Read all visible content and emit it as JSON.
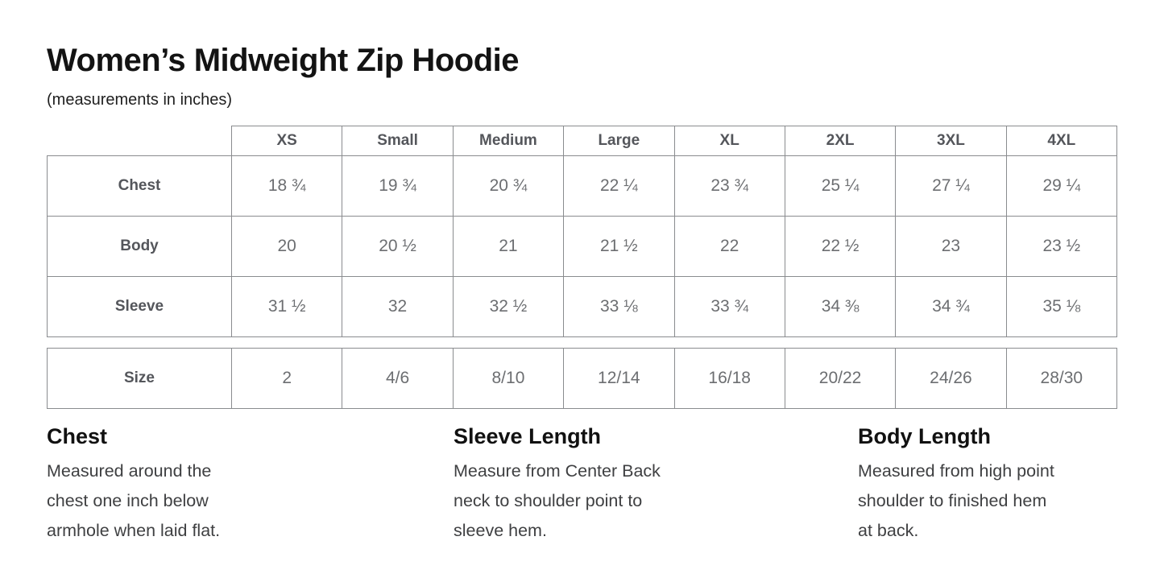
{
  "page": {
    "title": "Women’s Midweight Zip Hoodie",
    "subtitle": "(measurements in inches)"
  },
  "colors": {
    "table_border": "#8a8c8f",
    "header_text": "#54565b",
    "cell_text": "#6c6e71",
    "title_text": "#131313",
    "definition_text": "#3f4042"
  },
  "size_chart": {
    "columns": [
      "XS",
      "Small",
      "Medium",
      "Large",
      "XL",
      "2XL",
      "3XL",
      "4XL"
    ],
    "rows": [
      {
        "label": "Chest",
        "values": [
          "18 ¾",
          "19 ¾",
          "20 ¾",
          "22 ¼",
          "23 ¾",
          "25 ¼",
          "27 ¼",
          "29 ¼"
        ]
      },
      {
        "label": "Body",
        "values": [
          "20",
          "20 ½",
          "21",
          "21 ½",
          "22",
          "22 ½",
          "23",
          "23 ½"
        ]
      },
      {
        "label": "Sleeve",
        "values": [
          "31 ½",
          "32",
          "32 ½",
          "33 ⅛",
          "33 ¾",
          "34 ⅜",
          "34 ¾",
          "35 ⅛"
        ]
      }
    ],
    "size_row": {
      "label": "Size",
      "values": [
        "2",
        "4/6",
        "8/10",
        "12/14",
        "16/18",
        "20/22",
        "24/26",
        "28/30"
      ]
    }
  },
  "definitions": [
    {
      "heading": "Chest",
      "description": "Measured around the\nchest one inch below\narmhole when laid flat."
    },
    {
      "heading": "Sleeve Length",
      "description": "Measure from Center Back\nneck to shoulder point to\nsleeve hem."
    },
    {
      "heading": "Body Length",
      "description": "Measured from high point\nshoulder to finished hem\nat back."
    }
  ]
}
